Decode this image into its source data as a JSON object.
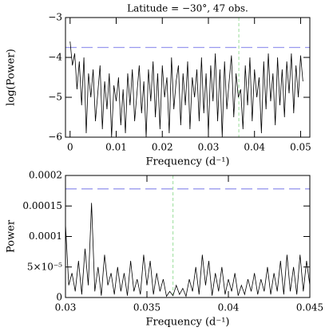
{
  "chart_data": [
    {
      "type": "line",
      "title": "Latitude = −30°, 47 obs.",
      "xlabel": "Frequency (d⁻¹)",
      "ylabel": "log(Power)",
      "xlim": [
        -0.001,
        0.052
      ],
      "ylim": [
        -6,
        -3
      ],
      "xticks": [
        0,
        0.01,
        0.02,
        0.03,
        0.04,
        0.05
      ],
      "yticks": [
        {
          "value": -6,
          "label": "−6"
        },
        {
          "value": -5,
          "label": "−5"
        },
        {
          "value": -4,
          "label": "−4"
        },
        {
          "value": -3,
          "label": "−3"
        }
      ],
      "x": [
        0,
        0.0005,
        0.001,
        0.0015,
        0.002,
        0.0025,
        0.003,
        0.0035,
        0.004,
        0.0045,
        0.005,
        0.0055,
        0.006,
        0.0065,
        0.007,
        0.0075,
        0.008,
        0.0085,
        0.009,
        0.0095,
        0.01,
        0.0105,
        0.011,
        0.0115,
        0.012,
        0.0125,
        0.013,
        0.0135,
        0.014,
        0.0145,
        0.015,
        0.0155,
        0.016,
        0.0165,
        0.017,
        0.0175,
        0.018,
        0.0185,
        0.019,
        0.0195,
        0.02,
        0.0205,
        0.021,
        0.0215,
        0.022,
        0.0225,
        0.023,
        0.0235,
        0.024,
        0.0245,
        0.025,
        0.0255,
        0.026,
        0.0265,
        0.027,
        0.0275,
        0.028,
        0.0285,
        0.029,
        0.0295,
        0.03,
        0.0305,
        0.031,
        0.0315,
        0.032,
        0.0325,
        0.033,
        0.0335,
        0.034,
        0.0345,
        0.035,
        0.0355,
        0.036,
        0.0365,
        0.037,
        0.0375,
        0.038,
        0.0385,
        0.039,
        0.0395,
        0.04,
        0.0405,
        0.041,
        0.0415,
        0.042,
        0.0425,
        0.043,
        0.0435,
        0.044,
        0.0445,
        0.045,
        0.0455,
        0.046,
        0.0465,
        0.047,
        0.0475,
        0.048,
        0.0485,
        0.049,
        0.0495,
        0.05,
        0.0505
      ],
      "series": [
        {
          "color": "#000000",
          "values": [
            -3.6,
            -4.2,
            -3.9,
            -4.8,
            -4.1,
            -5.2,
            -4.0,
            -5.9,
            -4.4,
            -5.0,
            -4.3,
            -5.6,
            -4.9,
            -4.2,
            -5.8,
            -4.6,
            -5.3,
            -4.4,
            -6.0,
            -4.7,
            -5.1,
            -4.5,
            -5.7,
            -4.8,
            -5.9,
            -4.4,
            -5.2,
            -4.3,
            -5.6,
            -4.9,
            -4.2,
            -5.4,
            -4.6,
            -6.0,
            -4.3,
            -5.1,
            -4.1,
            -5.5,
            -4.4,
            -5.8,
            -4.2,
            -5.0,
            -4.5,
            -5.9,
            -4.0,
            -5.3,
            -4.6,
            -4.2,
            -5.7,
            -4.4,
            -5.2,
            -4.1,
            -5.8,
            -4.5,
            -5.0,
            -4.3,
            -5.6,
            -4.0,
            -5.4,
            -4.4,
            -5.9,
            -4.2,
            -5.1,
            -3.9,
            -5.6,
            -4.3,
            -6.0,
            -4.1,
            -5.3,
            -4.6,
            -3.95,
            -5.5,
            -4.4,
            -5.0,
            -4.8,
            -5.8,
            -4.2,
            -5.2,
            -4.0,
            -5.6,
            -4.3,
            -5.0,
            -4.5,
            -5.9,
            -4.1,
            -5.3,
            -3.9,
            -5.1,
            -4.4,
            -5.7,
            -4.0,
            -5.2,
            -4.3,
            -5.5,
            -4.1,
            -4.9,
            -3.9,
            -5.4,
            -4.2,
            -5.0,
            -3.95,
            -4.6
          ]
        }
      ],
      "hlines": [
        {
          "value": -3.75,
          "color": "#9999ee"
        }
      ],
      "vlines": [
        {
          "value": 0.0366,
          "color": "#99dd99"
        }
      ]
    },
    {
      "type": "line",
      "xlabel": "Frequency (d⁻¹)",
      "ylabel": "Power",
      "xlim": [
        0.03,
        0.045
      ],
      "ylim": [
        0,
        0.0002
      ],
      "xticks": [
        0.03,
        0.035,
        0.04,
        0.045
      ],
      "yticks": [
        0,
        {
          "value": 5e-05,
          "label": "5×10⁻⁵"
        },
        0.0001,
        0.00015,
        0.0002
      ],
      "x": [
        0.03,
        0.0302,
        0.0304,
        0.0306,
        0.0308,
        0.031,
        0.0312,
        0.0314,
        0.0316,
        0.0318,
        0.032,
        0.0322,
        0.0324,
        0.0326,
        0.0328,
        0.033,
        0.0332,
        0.0334,
        0.0336,
        0.0338,
        0.034,
        0.0342,
        0.0344,
        0.0346,
        0.0348,
        0.035,
        0.0352,
        0.0354,
        0.0356,
        0.0358,
        0.036,
        0.0362,
        0.0364,
        0.0366,
        0.0368,
        0.037,
        0.0372,
        0.0374,
        0.0376,
        0.0378,
        0.038,
        0.0382,
        0.0384,
        0.0386,
        0.0388,
        0.039,
        0.0392,
        0.0394,
        0.0396,
        0.0398,
        0.04,
        0.0402,
        0.0404,
        0.0406,
        0.0408,
        0.041,
        0.0412,
        0.0414,
        0.0416,
        0.0418,
        0.042,
        0.0422,
        0.0424,
        0.0426,
        0.0428,
        0.043,
        0.0432,
        0.0434,
        0.0436,
        0.0438,
        0.044,
        0.0442,
        0.0444,
        0.0446,
        0.0448,
        0.045
      ],
      "series": [
        {
          "color": "#000000",
          "values": [
            0.00012,
            2e-05,
            4e-05,
            1e-05,
            6e-05,
            5e-06,
            8e-05,
            2e-05,
            0.000155,
            1e-05,
            5e-05,
            3e-06,
            7e-05,
            2e-05,
            4e-05,
            5e-06,
            5e-05,
            1e-05,
            4e-05,
            3e-06,
            6e-05,
            1e-05,
            3e-05,
            5e-06,
            7e-05,
            2e-05,
            6e-05,
            5e-06,
            4e-05,
            1e-05,
            3e-05,
            2e-06,
            1e-05,
            3e-06,
            2e-05,
            5e-06,
            1.5e-05,
            2e-06,
            3e-05,
            1e-05,
            5e-05,
            5e-06,
            7e-05,
            2e-05,
            6e-05,
            3e-06,
            4e-05,
            1e-05,
            5e-05,
            5e-06,
            3e-05,
            1e-05,
            4e-05,
            3e-06,
            2e-05,
            5e-06,
            3e-05,
            1e-05,
            4e-05,
            5e-06,
            3e-05,
            1e-05,
            5e-05,
            5e-06,
            4e-05,
            1e-05,
            6e-05,
            5e-06,
            7e-05,
            1e-05,
            5e-05,
            5e-06,
            7e-05,
            1e-05,
            6e-05,
            2e-05
          ]
        }
      ],
      "hlines": [
        {
          "value": 0.000178,
          "color": "#9999ee"
        }
      ],
      "vlines": [
        {
          "value": 0.0366,
          "color": "#99dd99"
        }
      ]
    }
  ]
}
